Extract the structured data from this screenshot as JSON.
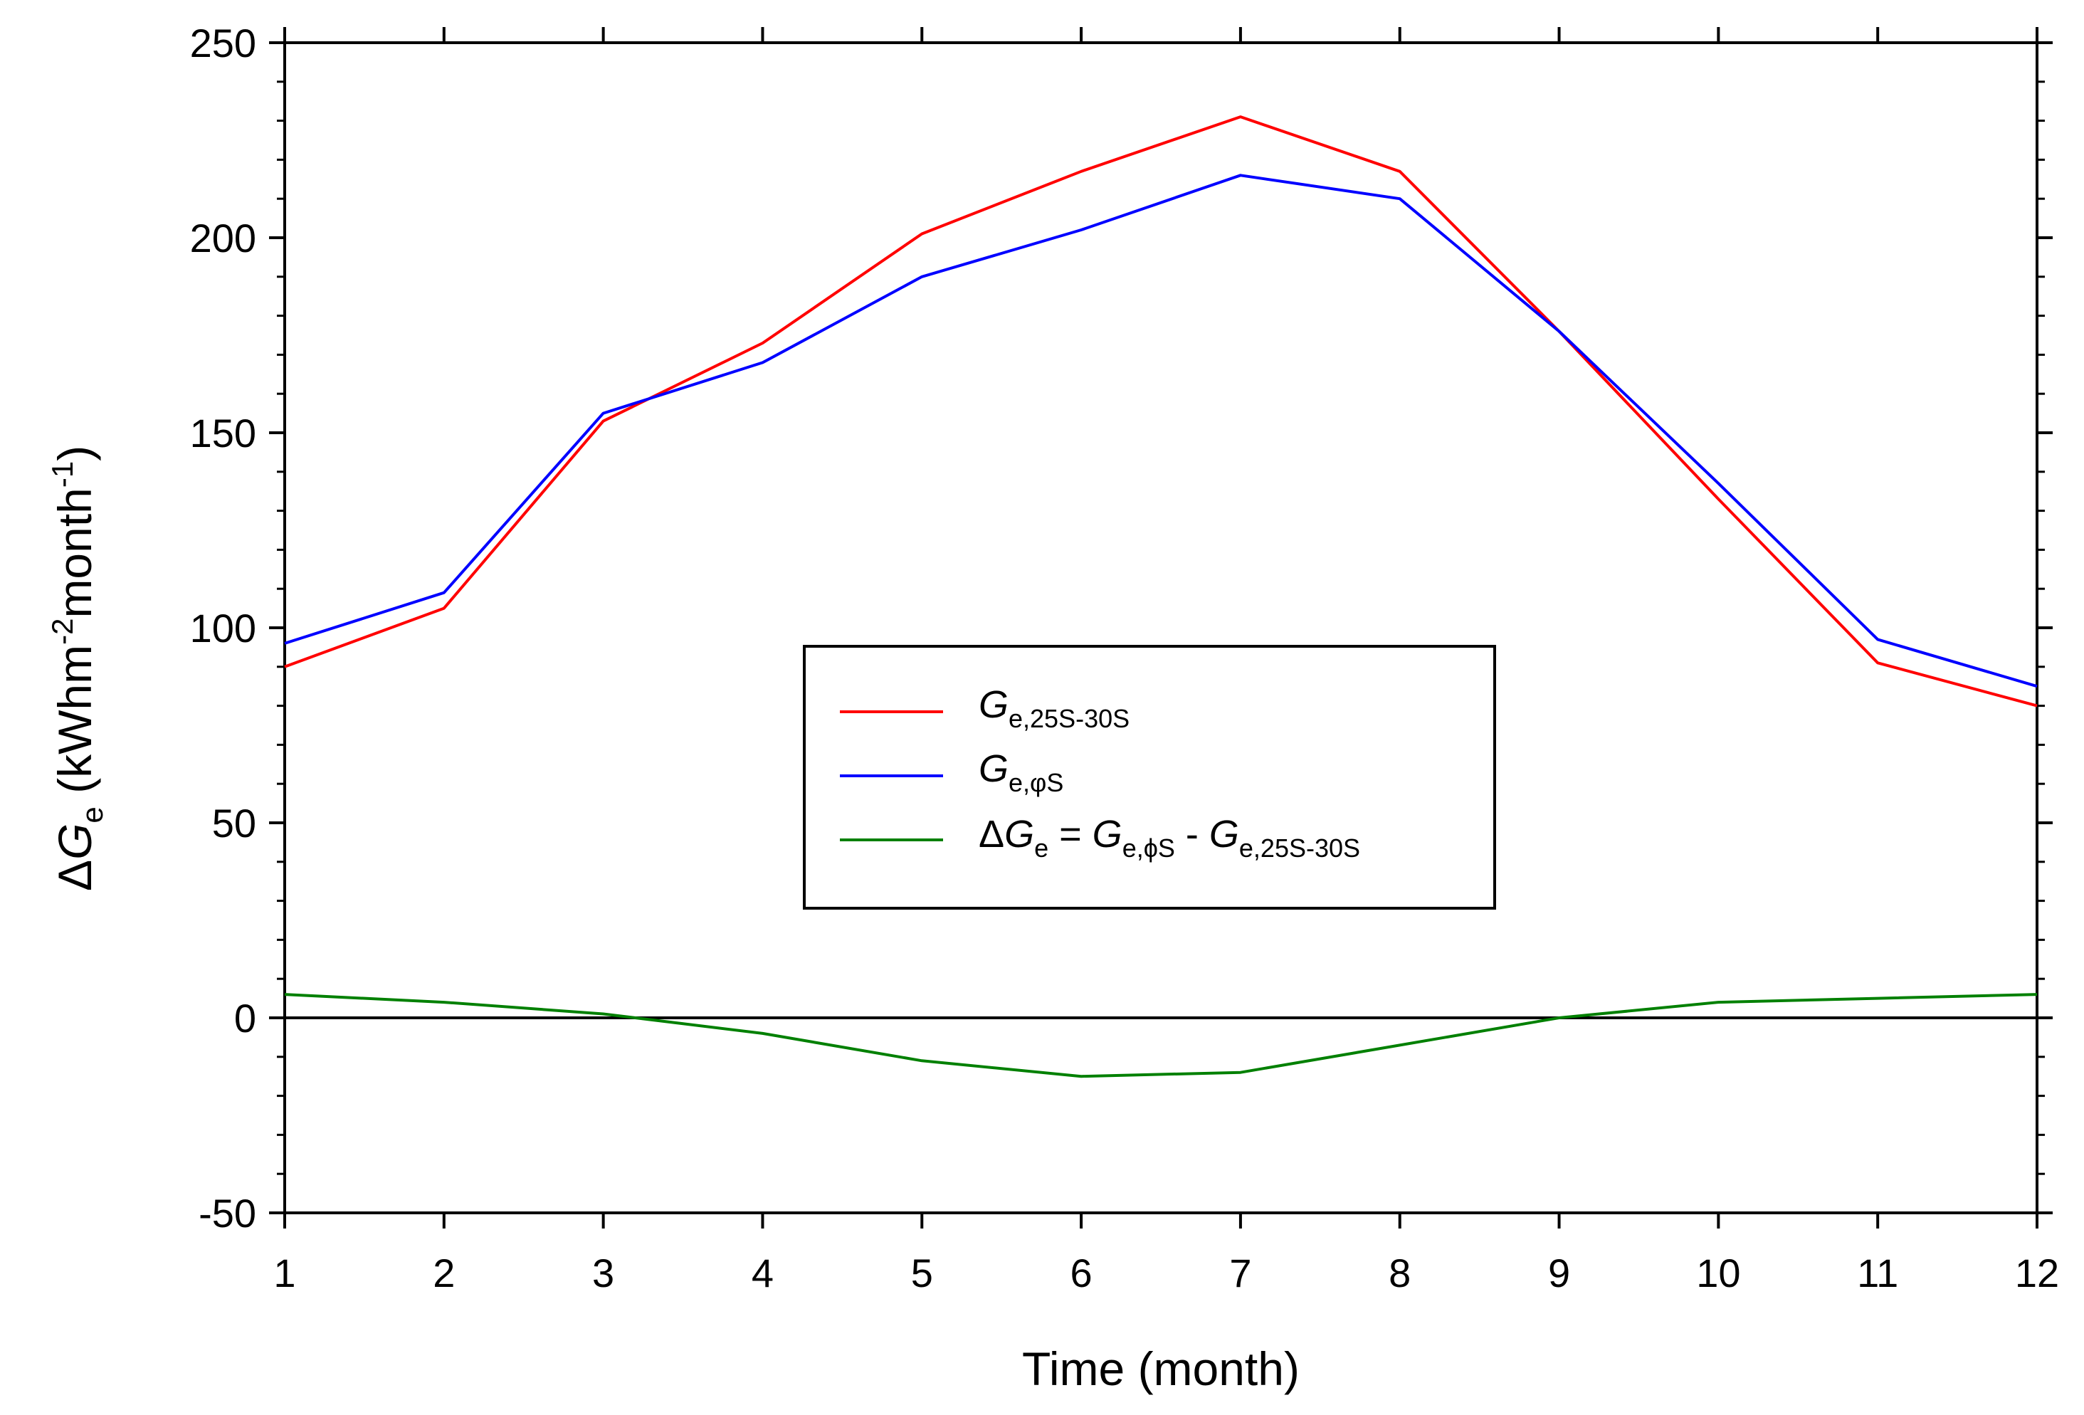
{
  "chart_data": {
    "type": "line",
    "title": "",
    "xlabel": "Time (month)",
    "ylabel": {
      "delta": "Δ",
      "var": "G",
      "sub": "e",
      "unit_open": " (kWhm",
      "exp1": "-2",
      "unit_mid": "month",
      "exp2": "-1",
      "unit_close": ")"
    },
    "x": [
      1,
      2,
      3,
      4,
      5,
      6,
      7,
      8,
      9,
      10,
      11,
      12
    ],
    "xlim": [
      1,
      12
    ],
    "ylim": [
      -50,
      250
    ],
    "yticks": [
      -50,
      0,
      50,
      100,
      150,
      200,
      250
    ],
    "xticks": [
      1,
      2,
      3,
      4,
      5,
      6,
      7,
      8,
      9,
      10,
      11,
      12
    ],
    "grid": false,
    "zero_line": true,
    "legend_position": "center",
    "series": [
      {
        "id": "g25",
        "color": "#ff0000",
        "values": [
          90,
          105,
          153,
          173,
          201,
          217,
          231,
          217,
          176,
          133,
          91,
          80
        ],
        "legend": {
          "var": "G",
          "sub": "e,25S-30S"
        }
      },
      {
        "id": "gphi",
        "color": "#0000ff",
        "values": [
          96,
          109,
          155,
          168,
          190,
          202,
          216,
          210,
          176,
          137,
          97,
          85
        ],
        "legend": {
          "var": "G",
          "sub": "e,φS"
        }
      },
      {
        "id": "delta",
        "color": "#008000",
        "values": [
          6,
          4,
          1,
          -4,
          -11,
          -15,
          -14,
          -7,
          0,
          4,
          5,
          6
        ],
        "legend": {
          "delta": "Δ",
          "var": "G",
          "sub": "e",
          "eq": " = ",
          "var2": "G",
          "sub2": "e,ϕS",
          "minus": " - ",
          "var3": "G",
          "sub3": "e,25S-30S"
        }
      }
    ]
  }
}
